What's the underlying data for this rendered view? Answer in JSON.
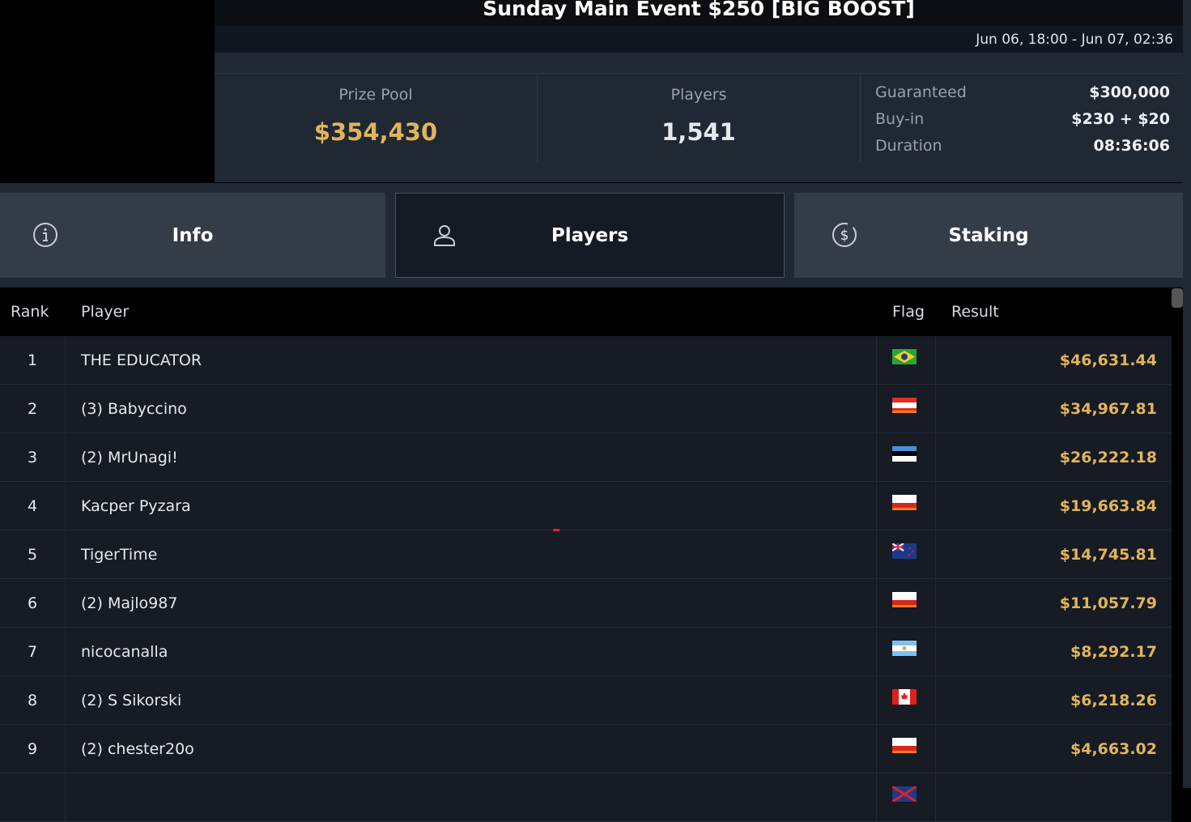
{
  "header": {
    "title": "Sunday Main Event $250 [BIG BOOST]",
    "dates": "Jun 06, 18:00 - Jun 07, 02:36"
  },
  "stats": {
    "prize_pool_label": "Prize Pool",
    "prize_pool": "$354,430",
    "players_label": "Players",
    "players": "1,541",
    "details": [
      {
        "k": "Guaranteed",
        "v": "$300,000"
      },
      {
        "k": "Buy-in",
        "v": "$230 + $20"
      },
      {
        "k": "Duration",
        "v": "08:36:06"
      }
    ]
  },
  "tabs": [
    {
      "label": "Info",
      "icon": "info-icon"
    },
    {
      "label": "Players",
      "icon": "user-icon",
      "active": true
    },
    {
      "label": "Staking",
      "icon": "dollar-coin-icon"
    }
  ],
  "table": {
    "headers": [
      "Rank",
      "Player",
      "Flag",
      "Result"
    ],
    "rows": [
      {
        "rank": "1",
        "player": "THE EDUCATOR",
        "flag": "BR",
        "result": "$46,631.44"
      },
      {
        "rank": "2",
        "player": "(3) Babyccino",
        "flag": "AT",
        "result": "$34,967.81"
      },
      {
        "rank": "3",
        "player": "(2) MrUnagi!",
        "flag": "EE",
        "result": "$26,222.18"
      },
      {
        "rank": "4",
        "player": "Kacper Pyzara",
        "flag": "PL",
        "result": "$19,663.84"
      },
      {
        "rank": "5",
        "player": "TigerTime",
        "flag": "NZ",
        "result": "$14,745.81"
      },
      {
        "rank": "6",
        "player": "(2) Majlo987",
        "flag": "PL",
        "result": "$11,057.79"
      },
      {
        "rank": "7",
        "player": "nicocanalla",
        "flag": "AR",
        "result": "$8,292.17"
      },
      {
        "rank": "8",
        "player": "(2) S Sikorski",
        "flag": "CA",
        "result": "$6,218.26"
      },
      {
        "rank": "9",
        "player": "(2) chester20o",
        "flag": "PL",
        "result": "$4,663.02"
      }
    ]
  },
  "colors": {
    "gold": "#e2b45a",
    "row_bg": "#161b24",
    "tab_bg": "#343c48",
    "active_tab_bg": "#151b24"
  }
}
